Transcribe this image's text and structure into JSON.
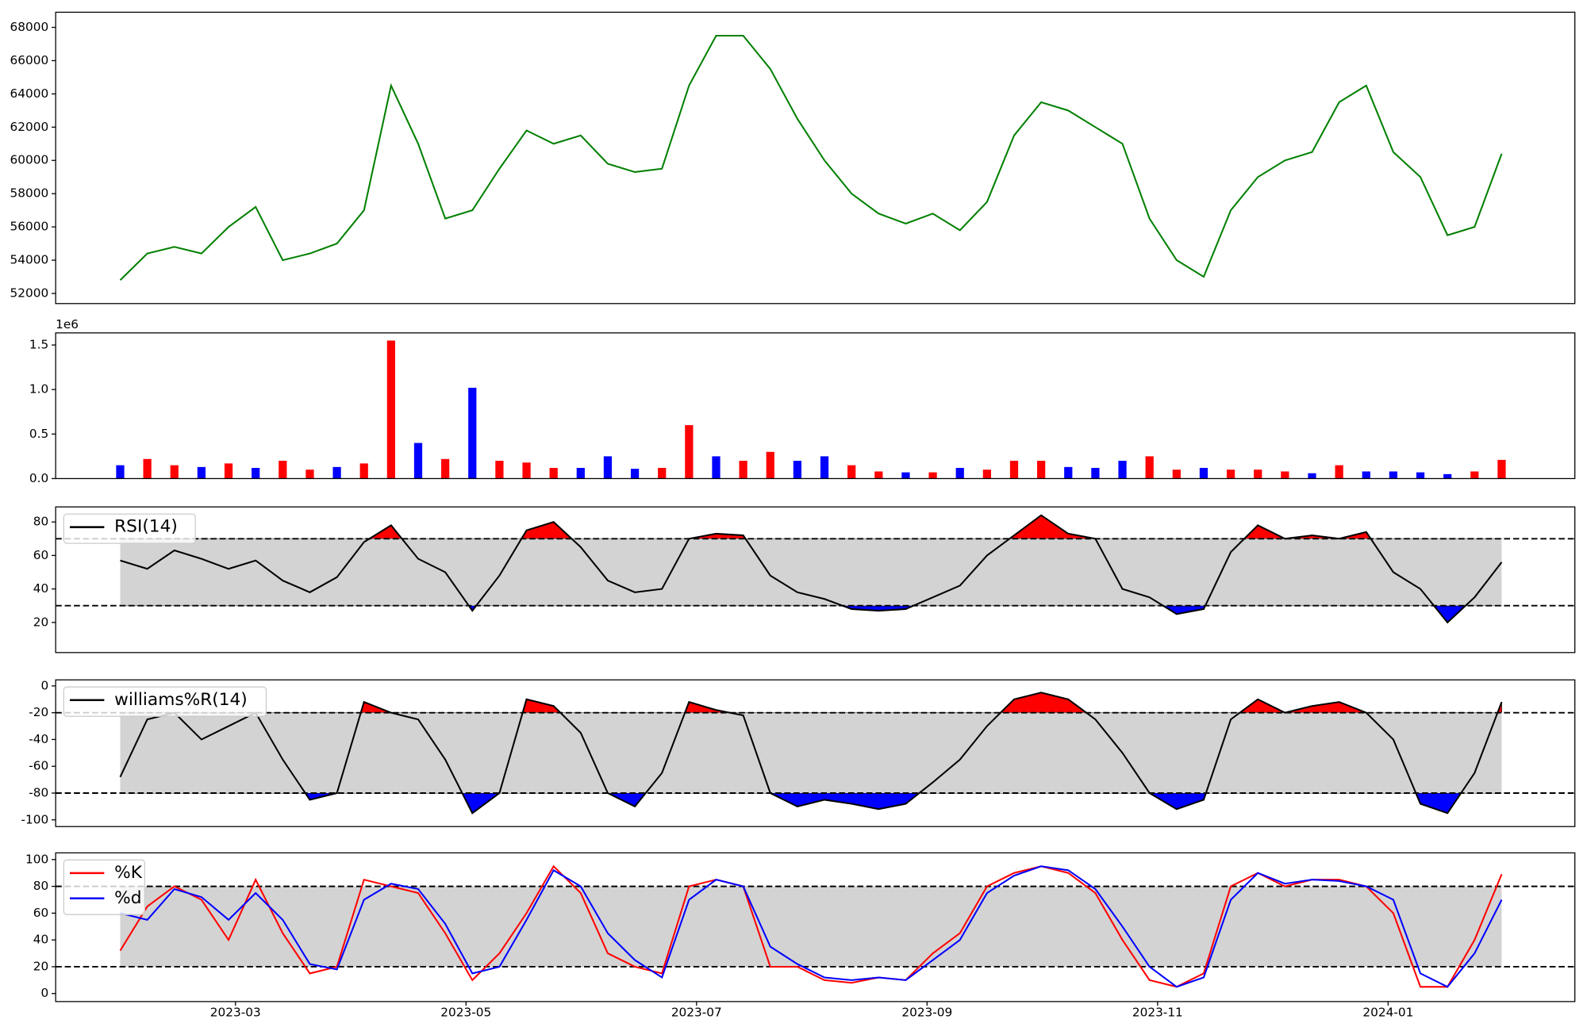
{
  "chart_data": [
    {
      "type": "line",
      "ylim": [
        51390,
        68910
      ],
      "yticks": [
        52000,
        54000,
        56000,
        58000,
        60000,
        62000,
        64000,
        66000,
        68000
      ],
      "series": [
        {
          "color": "#008000",
          "values": [
            52800,
            54400,
            54800,
            54400,
            56000,
            57200,
            54000,
            54400,
            55000,
            57000,
            64500,
            61000,
            56500,
            57000,
            59500,
            61800,
            61000,
            61500,
            59800,
            59300,
            59500,
            64500,
            67500,
            67500,
            65500,
            62500,
            60000,
            58000,
            56800,
            56200,
            56800,
            55800,
            57500,
            61500,
            63500,
            63000,
            62000,
            61000,
            56500,
            54000,
            53000,
            57000,
            59000,
            60000,
            60500,
            63500,
            64500,
            60500,
            59000,
            55500,
            56000,
            60400
          ]
        }
      ]
    },
    {
      "type": "bar",
      "ylim": [
        0,
        1636000
      ],
      "offset_label": "1e6",
      "yticks": [
        {
          "value": 0,
          "label": "0.0"
        },
        {
          "value": 500000,
          "label": "0.5"
        },
        {
          "value": 1000000,
          "label": "1.0"
        },
        {
          "value": 1500000,
          "label": "1.5"
        }
      ],
      "values": [
        150000,
        220000,
        150000,
        130000,
        170000,
        120000,
        200000,
        100000,
        130000,
        170000,
        1550000,
        400000,
        220000,
        1020000,
        200000,
        180000,
        120000,
        120000,
        250000,
        110000,
        120000,
        600000,
        250000,
        200000,
        300000,
        200000,
        250000,
        150000,
        80000,
        70000,
        70000,
        120000,
        100000,
        200000,
        200000,
        130000,
        120000,
        200000,
        250000,
        100000,
        120000,
        100000,
        100000,
        80000,
        60000,
        150000,
        80000,
        80000,
        70000,
        50000,
        80000,
        210000
      ],
      "colors": [
        "#0000ff",
        "#ff0000",
        "#ff0000",
        "#0000ff",
        "#ff0000",
        "#0000ff",
        "#ff0000",
        "#ff0000",
        "#0000ff",
        "#ff0000",
        "#ff0000",
        "#0000ff",
        "#ff0000",
        "#0000ff",
        "#ff0000",
        "#ff0000",
        "#ff0000",
        "#0000ff",
        "#0000ff",
        "#0000ff",
        "#ff0000",
        "#ff0000",
        "#0000ff",
        "#ff0000",
        "#ff0000",
        "#0000ff",
        "#0000ff",
        "#ff0000",
        "#ff0000",
        "#0000ff",
        "#ff0000",
        "#0000ff",
        "#ff0000",
        "#ff0000",
        "#ff0000",
        "#0000ff",
        "#0000ff",
        "#0000ff",
        "#ff0000",
        "#ff0000",
        "#0000ff",
        "#ff0000",
        "#ff0000",
        "#ff0000",
        "#0000ff",
        "#ff0000",
        "#0000ff",
        "#0000ff",
        "#0000ff",
        "#0000ff",
        "#ff0000",
        "#ff0000"
      ]
    },
    {
      "type": "line",
      "ylim": [
        2,
        89
      ],
      "yticks": [
        20,
        40,
        60,
        80
      ],
      "thresholds": [
        30,
        70
      ],
      "legend": "upper left",
      "fill_above": "#ff0000",
      "fill_below": "#0000ff",
      "fill_between": "#d3d3d3",
      "series": [
        {
          "name": "RSI(14)",
          "color": "#000000",
          "values": [
            57,
            52,
            63,
            58,
            52,
            57,
            45,
            38,
            47,
            68,
            78,
            58,
            50,
            27,
            48,
            75,
            80,
            65,
            45,
            38,
            40,
            70,
            73,
            72,
            48,
            38,
            34,
            28,
            27,
            28,
            35,
            42,
            60,
            72,
            84,
            73,
            70,
            40,
            35,
            25,
            28,
            62,
            78,
            70,
            72,
            70,
            74,
            50,
            40,
            20,
            35,
            56
          ]
        }
      ]
    },
    {
      "type": "line",
      "ylim": [
        -105,
        4.5
      ],
      "yticks": [
        -100,
        -80,
        -60,
        -40,
        -20,
        0
      ],
      "thresholds": [
        -80,
        -20
      ],
      "legend": "upper left",
      "fill_above": "#ff0000",
      "fill_below": "#0000ff",
      "fill_between": "#d3d3d3",
      "series": [
        {
          "name": "williams%R(14)",
          "color": "#000000",
          "values": [
            -68,
            -25,
            -20,
            -40,
            -30,
            -20,
            -55,
            -85,
            -80,
            -12,
            -20,
            -25,
            -55,
            -95,
            -80,
            -10,
            -15,
            -35,
            -80,
            -90,
            -65,
            -12,
            -18,
            -22,
            -80,
            -90,
            -85,
            -88,
            -92,
            -88,
            -72,
            -55,
            -30,
            -10,
            -5,
            -10,
            -25,
            -50,
            -80,
            -92,
            -85,
            -25,
            -10,
            -20,
            -15,
            -12,
            -20,
            -40,
            -88,
            -95,
            -65,
            -12
          ]
        }
      ]
    },
    {
      "type": "line",
      "ylim": [
        -6,
        105
      ],
      "yticks": [
        0,
        20,
        40,
        60,
        80,
        100
      ],
      "thresholds": [
        20,
        80
      ],
      "legend": "upper left",
      "fill_between": "#d3d3d3",
      "x": [
        1.0,
        1.235,
        1.47,
        1.705,
        1.94,
        2.175,
        2.41,
        2.645,
        2.88,
        3.115,
        3.35,
        3.585,
        3.82,
        4.055,
        4.29,
        4.525,
        4.76,
        4.995,
        5.23,
        5.465,
        5.7,
        5.935,
        6.17,
        6.405,
        6.64,
        6.875,
        7.11,
        7.345,
        7.58,
        7.815,
        8.05,
        8.285,
        8.52,
        8.755,
        8.99,
        9.225,
        9.46,
        9.695,
        9.93,
        10.165,
        10.4,
        10.635,
        10.87,
        11.105,
        11.34,
        11.575,
        11.81,
        12.045,
        12.28,
        12.515,
        12.75,
        12.985
      ],
      "xlim": [
        0.44,
        13.62
      ],
      "xticks": [
        {
          "value": 2,
          "label": "2023-03"
        },
        {
          "value": 4,
          "label": "2023-05"
        },
        {
          "value": 6,
          "label": "2023-07"
        },
        {
          "value": 8,
          "label": "2023-09"
        },
        {
          "value": 10,
          "label": "2023-11"
        },
        {
          "value": 12,
          "label": "2024-01"
        }
      ],
      "series": [
        {
          "name": "%K",
          "color": "#ff0000",
          "values": [
            32,
            65,
            80,
            70,
            40,
            85,
            45,
            15,
            20,
            85,
            80,
            75,
            45,
            10,
            30,
            60,
            95,
            75,
            30,
            20,
            15,
            80,
            85,
            80,
            20,
            20,
            10,
            8,
            12,
            10,
            30,
            45,
            80,
            90,
            95,
            90,
            75,
            40,
            10,
            5,
            15,
            80,
            90,
            80,
            85,
            85,
            80,
            60,
            5,
            5,
            40,
            89
          ]
        },
        {
          "name": "%d",
          "color": "#0000ff",
          "values": [
            60,
            55,
            78,
            72,
            55,
            75,
            55,
            22,
            18,
            70,
            82,
            78,
            52,
            15,
            20,
            55,
            92,
            80,
            45,
            25,
            12,
            70,
            85,
            80,
            35,
            22,
            12,
            10,
            12,
            10,
            25,
            40,
            75,
            88,
            95,
            92,
            78,
            50,
            20,
            5,
            12,
            70,
            90,
            82,
            85,
            84,
            80,
            70,
            15,
            5,
            30,
            70
          ]
        }
      ]
    }
  ]
}
